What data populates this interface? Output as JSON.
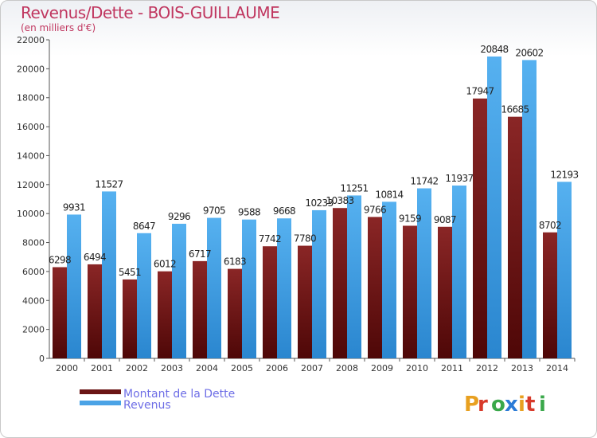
{
  "title": "Revenus/Dette - BOIS-GUILLAUME",
  "subtitle": "(en milliers d'€)",
  "logo": "Proxiti",
  "chart_data": {
    "type": "bar",
    "categories": [
      "2000",
      "2001",
      "2002",
      "2003",
      "2004",
      "2005",
      "2006",
      "2007",
      "2008",
      "2009",
      "2010",
      "2011",
      "2012",
      "2013",
      "2014"
    ],
    "series": [
      {
        "name": "Montant de la Dette",
        "color": "#7a1c1c",
        "values": [
          6298,
          6494,
          5451,
          6012,
          6717,
          6183,
          7742,
          7780,
          10383,
          9766,
          9159,
          9087,
          17947,
          16685,
          8702
        ]
      },
      {
        "name": "Revenus",
        "color": "#4ba3e6",
        "values": [
          9931,
          11527,
          8647,
          9296,
          9705,
          9588,
          9668,
          10233,
          11251,
          10814,
          11742,
          11937,
          20848,
          20602,
          12193
        ]
      }
    ],
    "ylim": [
      0,
      22000
    ],
    "yticks": [
      0,
      2000,
      4000,
      6000,
      8000,
      10000,
      12000,
      14000,
      16000,
      18000,
      20000,
      22000
    ],
    "grid": false,
    "legend": "bottom-left"
  }
}
